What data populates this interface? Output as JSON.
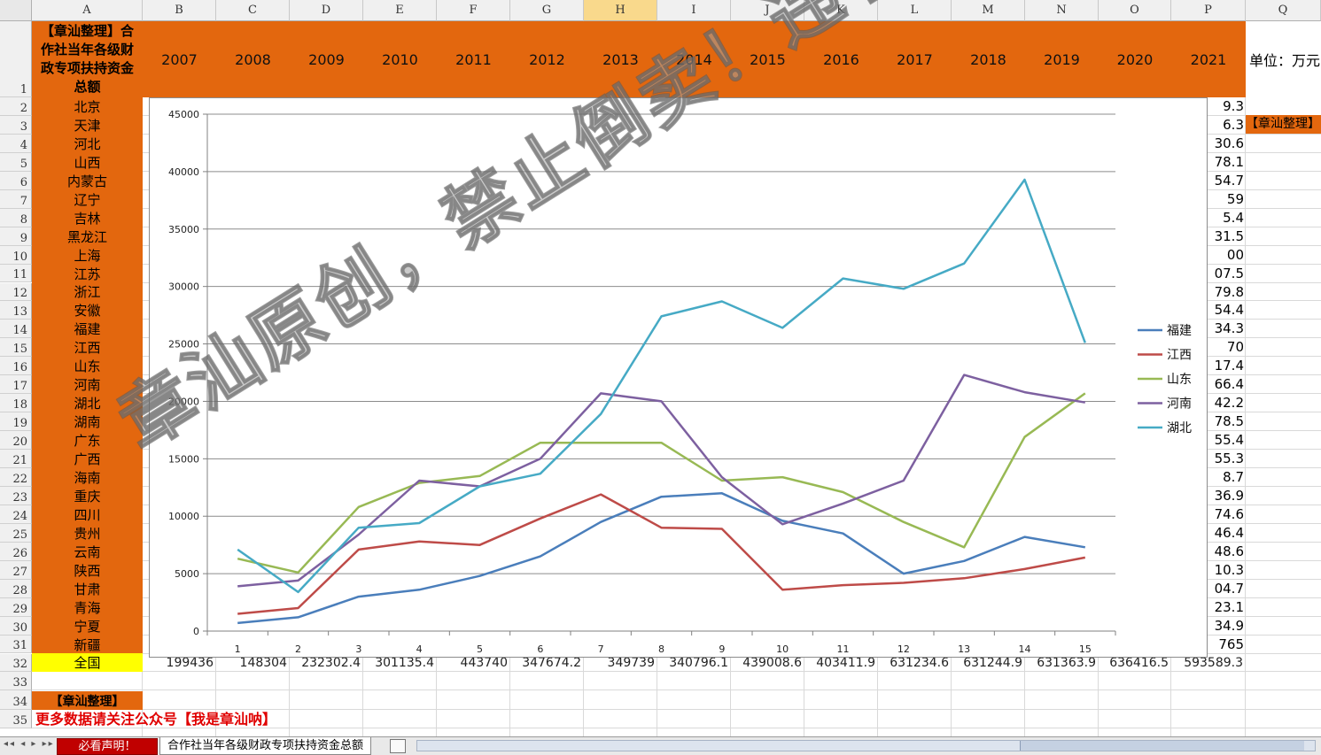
{
  "columns": [
    "A",
    "B",
    "C",
    "D",
    "E",
    "F",
    "G",
    "H",
    "I",
    "J",
    "K",
    "L",
    "M",
    "N",
    "O",
    "P",
    "Q"
  ],
  "header_cell": "【章汕整理】合作社当年各级财政专项扶持资金总额",
  "years": [
    "2007",
    "2008",
    "2009",
    "2010",
    "2011",
    "2012",
    "2013",
    "2014",
    "2015",
    "2016",
    "2017",
    "2018",
    "2019",
    "2020",
    "2021"
  ],
  "unit_label": "单位：万元",
  "side_tag": "【章汕整理】",
  "provinces": [
    "北京",
    "天津",
    "河北",
    "山西",
    "内蒙古",
    "辽宁",
    "吉林",
    "黑龙江",
    "上海",
    "江苏",
    "浙江",
    "安徽",
    "福建",
    "江西",
    "山东",
    "河南",
    "湖北",
    "湖南",
    "广东",
    "广西",
    "海南",
    "重庆",
    "四川",
    "贵州",
    "云南",
    "陕西",
    "甘肃",
    "青海",
    "宁夏",
    "新疆"
  ],
  "national_label": "全国",
  "p_values": [
    "9.3",
    "6.3",
    "30.6",
    "78.1",
    "54.7",
    "59",
    "5.4",
    "31.5",
    "00",
    "07.5",
    "79.8",
    "54.4",
    "34.3",
    "70",
    "17.4",
    "66.4",
    "42.2",
    "78.5",
    "55.4",
    "55.3",
    "8.7",
    "36.9",
    "74.6",
    "46.4",
    "48.6",
    "10.3",
    "04.7",
    "23.1",
    "34.9",
    "765"
  ],
  "national_row": [
    "199436",
    "148304",
    "232302.4",
    "301135.4",
    "443740",
    "347674.2",
    "349739",
    "340796.1",
    "439008.6",
    "403411.9",
    "631234.6",
    "631244.9",
    "631363.9",
    "636416.5",
    "593589.3"
  ],
  "footer_tag": "【章汕整理】",
  "footer_note": "更多数据请关注公众号【我是章汕呐】",
  "tabs": [
    "必看声明！",
    "合作社当年各级财政专项扶持资金总额"
  ],
  "watermark": "章汕原创，禁止倒卖！违者必究",
  "chart_data": {
    "type": "line",
    "x": [
      1,
      2,
      3,
      4,
      5,
      6,
      7,
      8,
      9,
      10,
      11,
      12,
      13,
      14,
      15
    ],
    "ylim": [
      0,
      45000
    ],
    "yticks": [
      0,
      5000,
      10000,
      15000,
      20000,
      25000,
      30000,
      35000,
      40000,
      45000
    ],
    "grid": true,
    "legend_position": "right",
    "series": [
      {
        "name": "福建",
        "color": "#4a7ebb",
        "values": [
          700,
          1200,
          3000,
          3600,
          4800,
          6500,
          9500,
          11700,
          12000,
          9600,
          8500,
          5000,
          6100,
          8200,
          7300
        ]
      },
      {
        "name": "江西",
        "color": "#be4b48",
        "values": [
          1500,
          2000,
          7100,
          7800,
          7500,
          9800,
          11900,
          9000,
          8900,
          3600,
          4000,
          4200,
          4600,
          5400,
          6400
        ]
      },
      {
        "name": "山东",
        "color": "#98b954",
        "values": [
          6300,
          5100,
          10800,
          12900,
          13500,
          16400,
          16400,
          16400,
          13100,
          13400,
          12100,
          9500,
          7300,
          16900,
          20700
        ]
      },
      {
        "name": "河南",
        "color": "#7d60a0",
        "values": [
          3900,
          4400,
          8400,
          13100,
          12600,
          15000,
          20700,
          20000,
          13400,
          9300,
          11100,
          13100,
          22300,
          20800,
          19900
        ]
      },
      {
        "name": "湖北",
        "color": "#46aac5",
        "values": [
          7100,
          3400,
          9000,
          9400,
          12600,
          13700,
          18900,
          27400,
          28700,
          26400,
          30700,
          29800,
          32000,
          39300,
          25100
        ]
      }
    ]
  }
}
